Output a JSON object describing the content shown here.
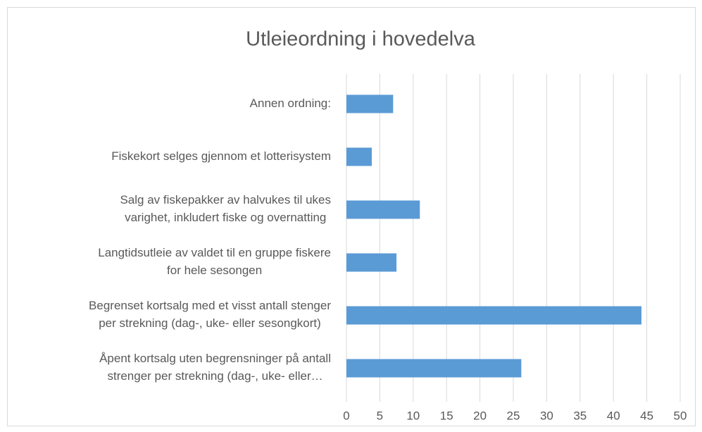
{
  "chart_data": {
    "type": "bar",
    "orientation": "horizontal",
    "title": "Utleieordning i hovedelva",
    "categories": [
      "Annen ordning:",
      "Fiskekort selges gjennom et lotterisystem",
      "Salg av fiskepakker av halvukes til ukes\nvarighet, inkludert fiske og overnatting",
      "Langtidsutleie av valdet til en gruppe fiskere\nfor hele sesongen",
      "Begrenset kortsalg med et visst antall stenger\nper strekning  (dag-, uke- eller sesongkort)",
      "Åpent kortsalg uten begrensninger på antall\nstrenger per strekning  (dag-, uke- eller…"
    ],
    "values": [
      7,
      3.8,
      11,
      7.5,
      44.2,
      26.2
    ],
    "color": "#5b9bd5",
    "xlim": [
      0,
      50
    ],
    "xticks": [
      0,
      5,
      10,
      15,
      20,
      25,
      30,
      35,
      40,
      45,
      50
    ],
    "grid": true
  }
}
